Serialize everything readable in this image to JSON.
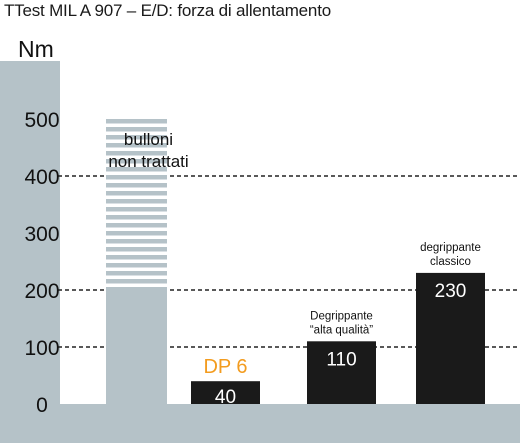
{
  "title": "TTest MIL A 907 – E/D: forza di allentamento",
  "colors": {
    "panel": "#b5c2c8",
    "bar": "#1a1a1a",
    "bar_value_text": "#ffffff",
    "highlight": "#f39c1f",
    "gridline": "#222222",
    "stripe": "#b5c2c8"
  },
  "chart_data": {
    "type": "bar",
    "ylabel": "Nm",
    "ylim": [
      0,
      500
    ],
    "y_ticks": [
      0,
      100,
      200,
      300,
      400,
      500
    ],
    "dashed_gridlines": [
      100,
      200,
      400
    ],
    "categories": [
      "bulloni non trattati",
      "DP 6",
      "Degrippante “alta qualità”",
      "degrippante classico"
    ],
    "bars": [
      {
        "label_lines": [
          "bulloni",
          "non trattati"
        ],
        "value": 500,
        "value_label": "",
        "style": "striped",
        "solid_until": 200
      },
      {
        "label_lines": [
          "DP 6"
        ],
        "value": 40,
        "value_label": "40",
        "style": "solid",
        "highlight": true
      },
      {
        "label_lines": [
          "Degrippante",
          "“alta qualità”"
        ],
        "value": 110,
        "value_label": "110",
        "style": "solid"
      },
      {
        "label_lines": [
          "degrippante",
          "classico"
        ],
        "value": 230,
        "value_label": "230",
        "style": "solid"
      }
    ]
  }
}
